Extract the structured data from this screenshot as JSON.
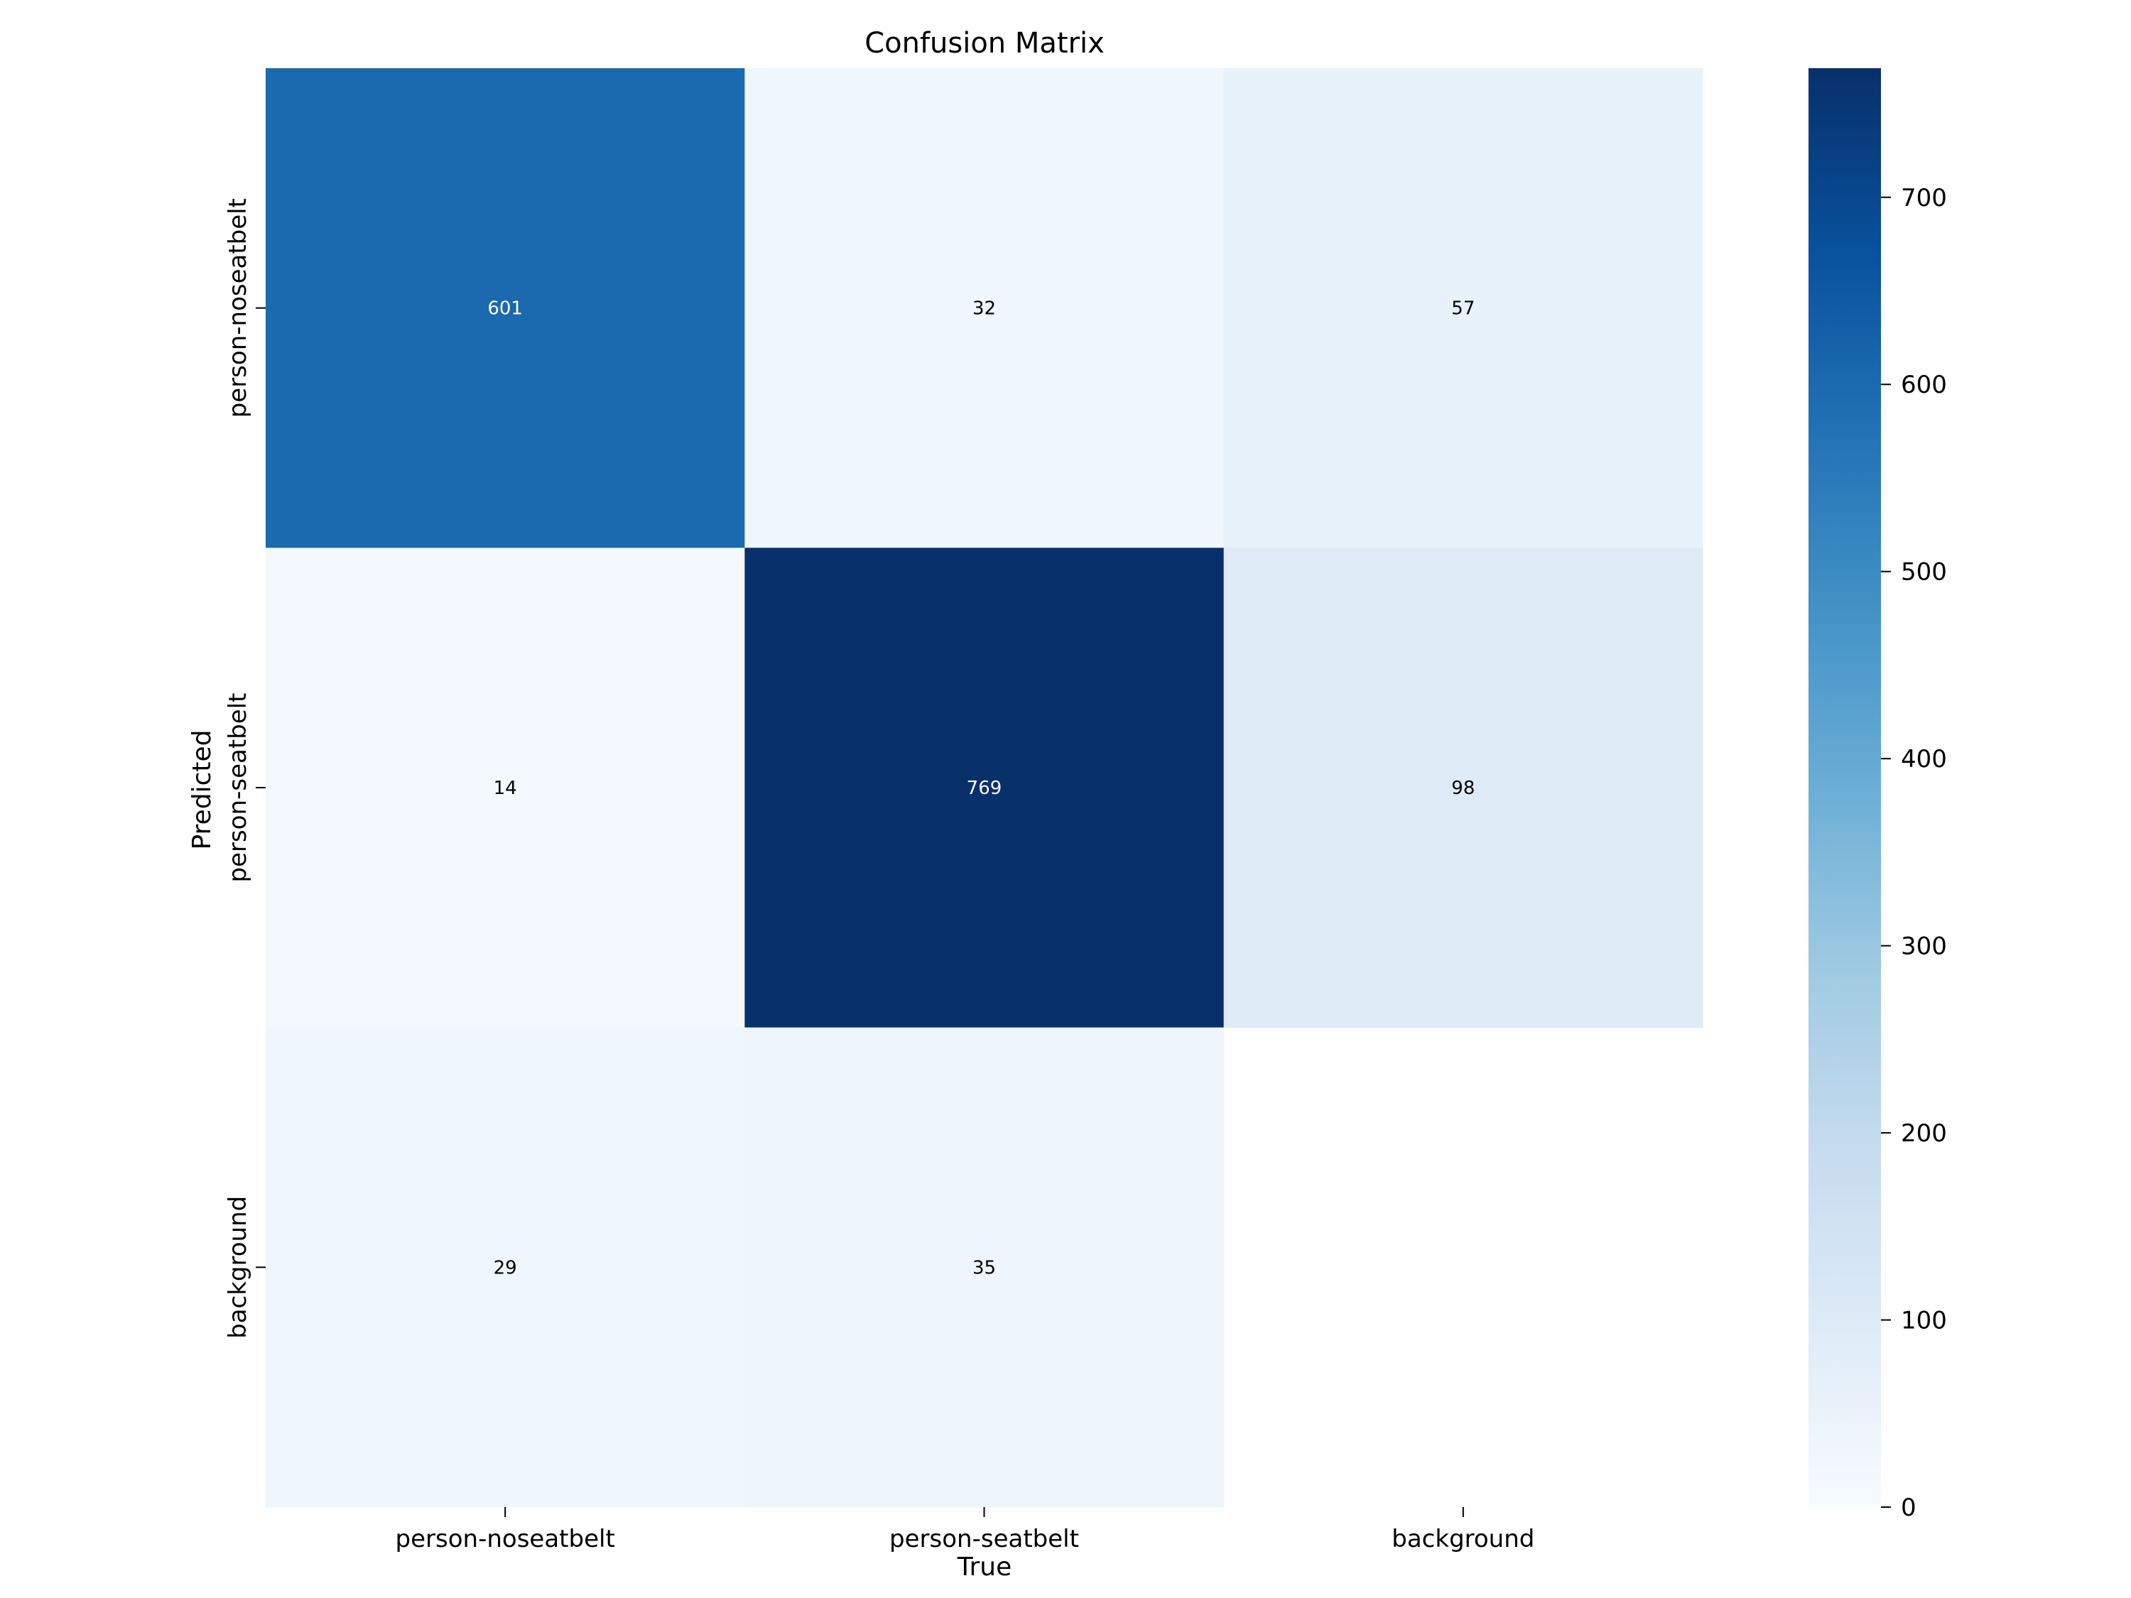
{
  "chart_data": {
    "type": "heatmap",
    "title": "Confusion Matrix",
    "xlabel": "True",
    "ylabel": "Predicted",
    "x_categories": [
      "person-noseatbelt",
      "person-seatbelt",
      "background"
    ],
    "y_categories": [
      "person-noseatbelt",
      "person-seatbelt",
      "background"
    ],
    "values": [
      [
        601,
        32,
        57
      ],
      [
        14,
        769,
        98
      ],
      [
        29,
        35,
        null
      ]
    ],
    "colorbar": {
      "min": 0,
      "max": 769,
      "ticks": [
        0,
        100,
        200,
        300,
        400,
        500,
        600,
        700
      ]
    },
    "colormap": "Blues",
    "colormap_stops": [
      "#f7fbff",
      "#deebf7",
      "#c6dbef",
      "#9ecae1",
      "#6baed6",
      "#4292c6",
      "#2171b5",
      "#08519c",
      "#08306b"
    ]
  }
}
